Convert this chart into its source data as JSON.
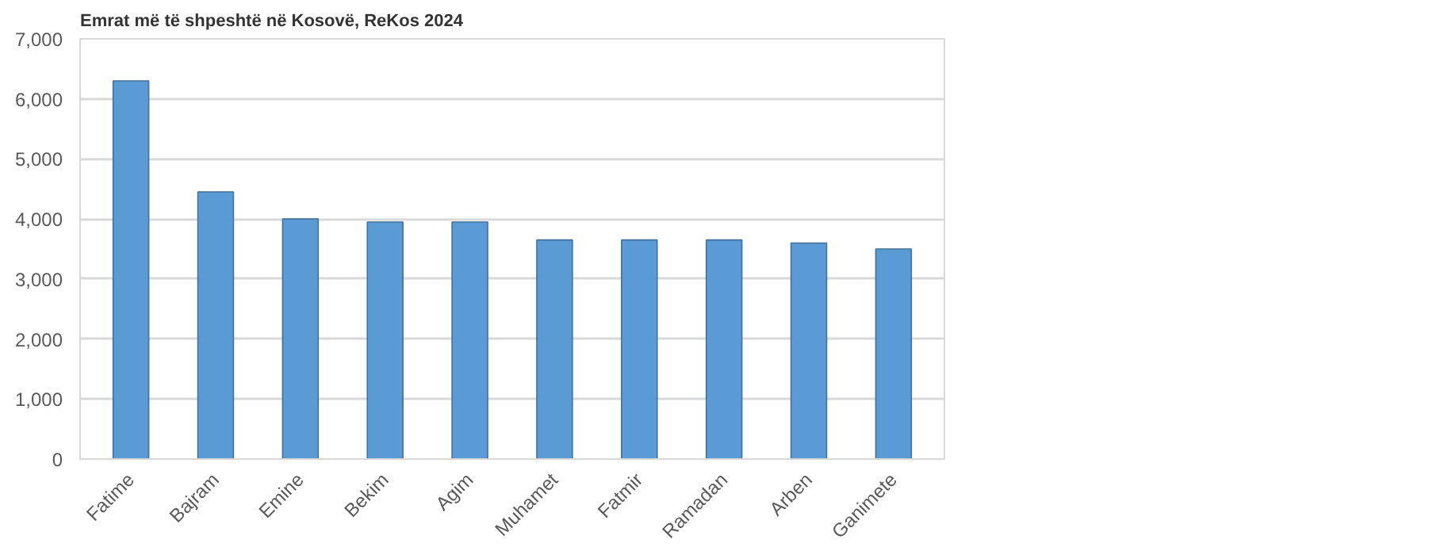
{
  "chart_data": {
    "type": "bar",
    "title": "Emrat më të shpeshtë në Kosovë, ReKos 2024",
    "categories": [
      "Fatime",
      "Bajram",
      "Emine",
      "Bekim",
      "Agim",
      "Muhamet",
      "Fatmir",
      "Ramadan",
      "Arben",
      "Ganimete"
    ],
    "values": [
      6300,
      4450,
      4000,
      3950,
      3950,
      3650,
      3650,
      3650,
      3600,
      3500
    ],
    "color": "#5b9bd5",
    "ylim": [
      0,
      7000
    ],
    "yticks": [
      {
        "value": 0,
        "label": "0"
      },
      {
        "value": 1000,
        "label": "1,000"
      },
      {
        "value": 2000,
        "label": "2,000"
      },
      {
        "value": 3000,
        "label": "3,000"
      },
      {
        "value": 4000,
        "label": "4,000"
      },
      {
        "value": 5000,
        "label": "5,000"
      },
      {
        "value": 6000,
        "label": "6,000"
      },
      {
        "value": 7000,
        "label": "7,000"
      }
    ],
    "grid": "y"
  }
}
